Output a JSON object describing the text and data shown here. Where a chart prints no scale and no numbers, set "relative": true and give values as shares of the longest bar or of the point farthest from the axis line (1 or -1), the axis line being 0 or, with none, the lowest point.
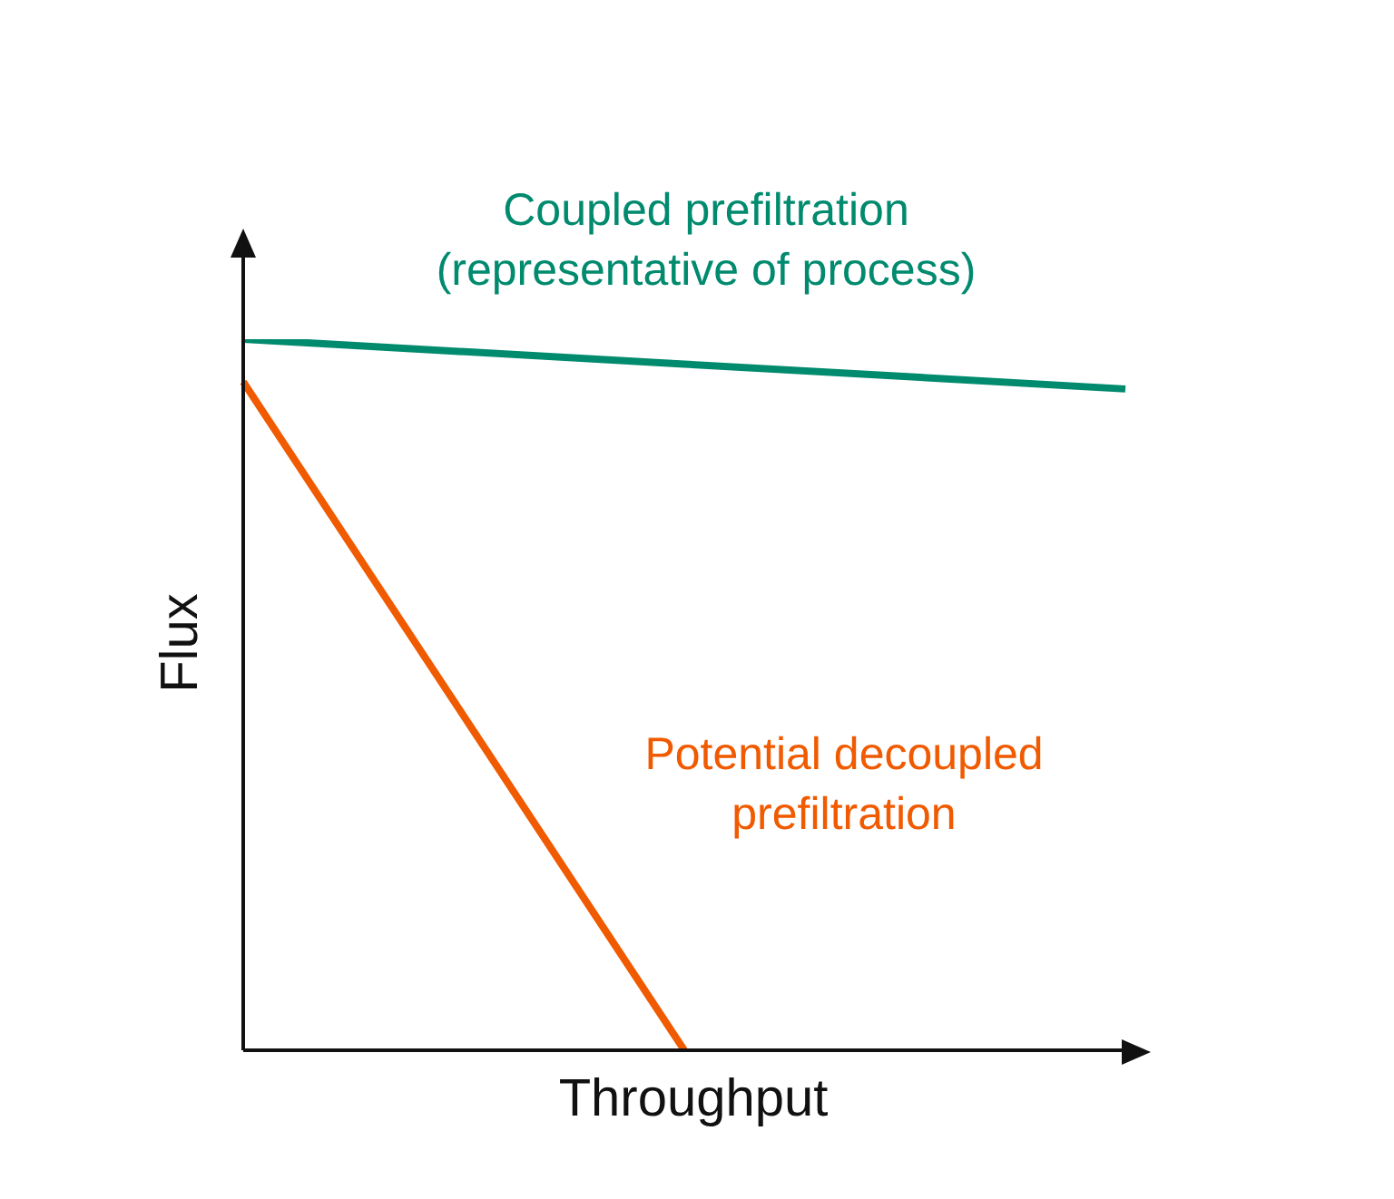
{
  "chart_data": {
    "type": "line",
    "relative": true,
    "xlabel": "Throughput",
    "ylabel": "Flux",
    "marker": "none",
    "line_style": "solid",
    "categories": [
      null,
      null,
      null
    ],
    "series": [
      {
        "name": "Coupled prefiltration (representative of process)",
        "color": "#008a6e",
        "values": [
          1,
          0.965,
          0.93
        ]
      },
      {
        "name": "Potential decoupled prefiltration",
        "color": "#f05a00",
        "values": [
          0.94,
          0,
          null
        ]
      }
    ]
  }
}
